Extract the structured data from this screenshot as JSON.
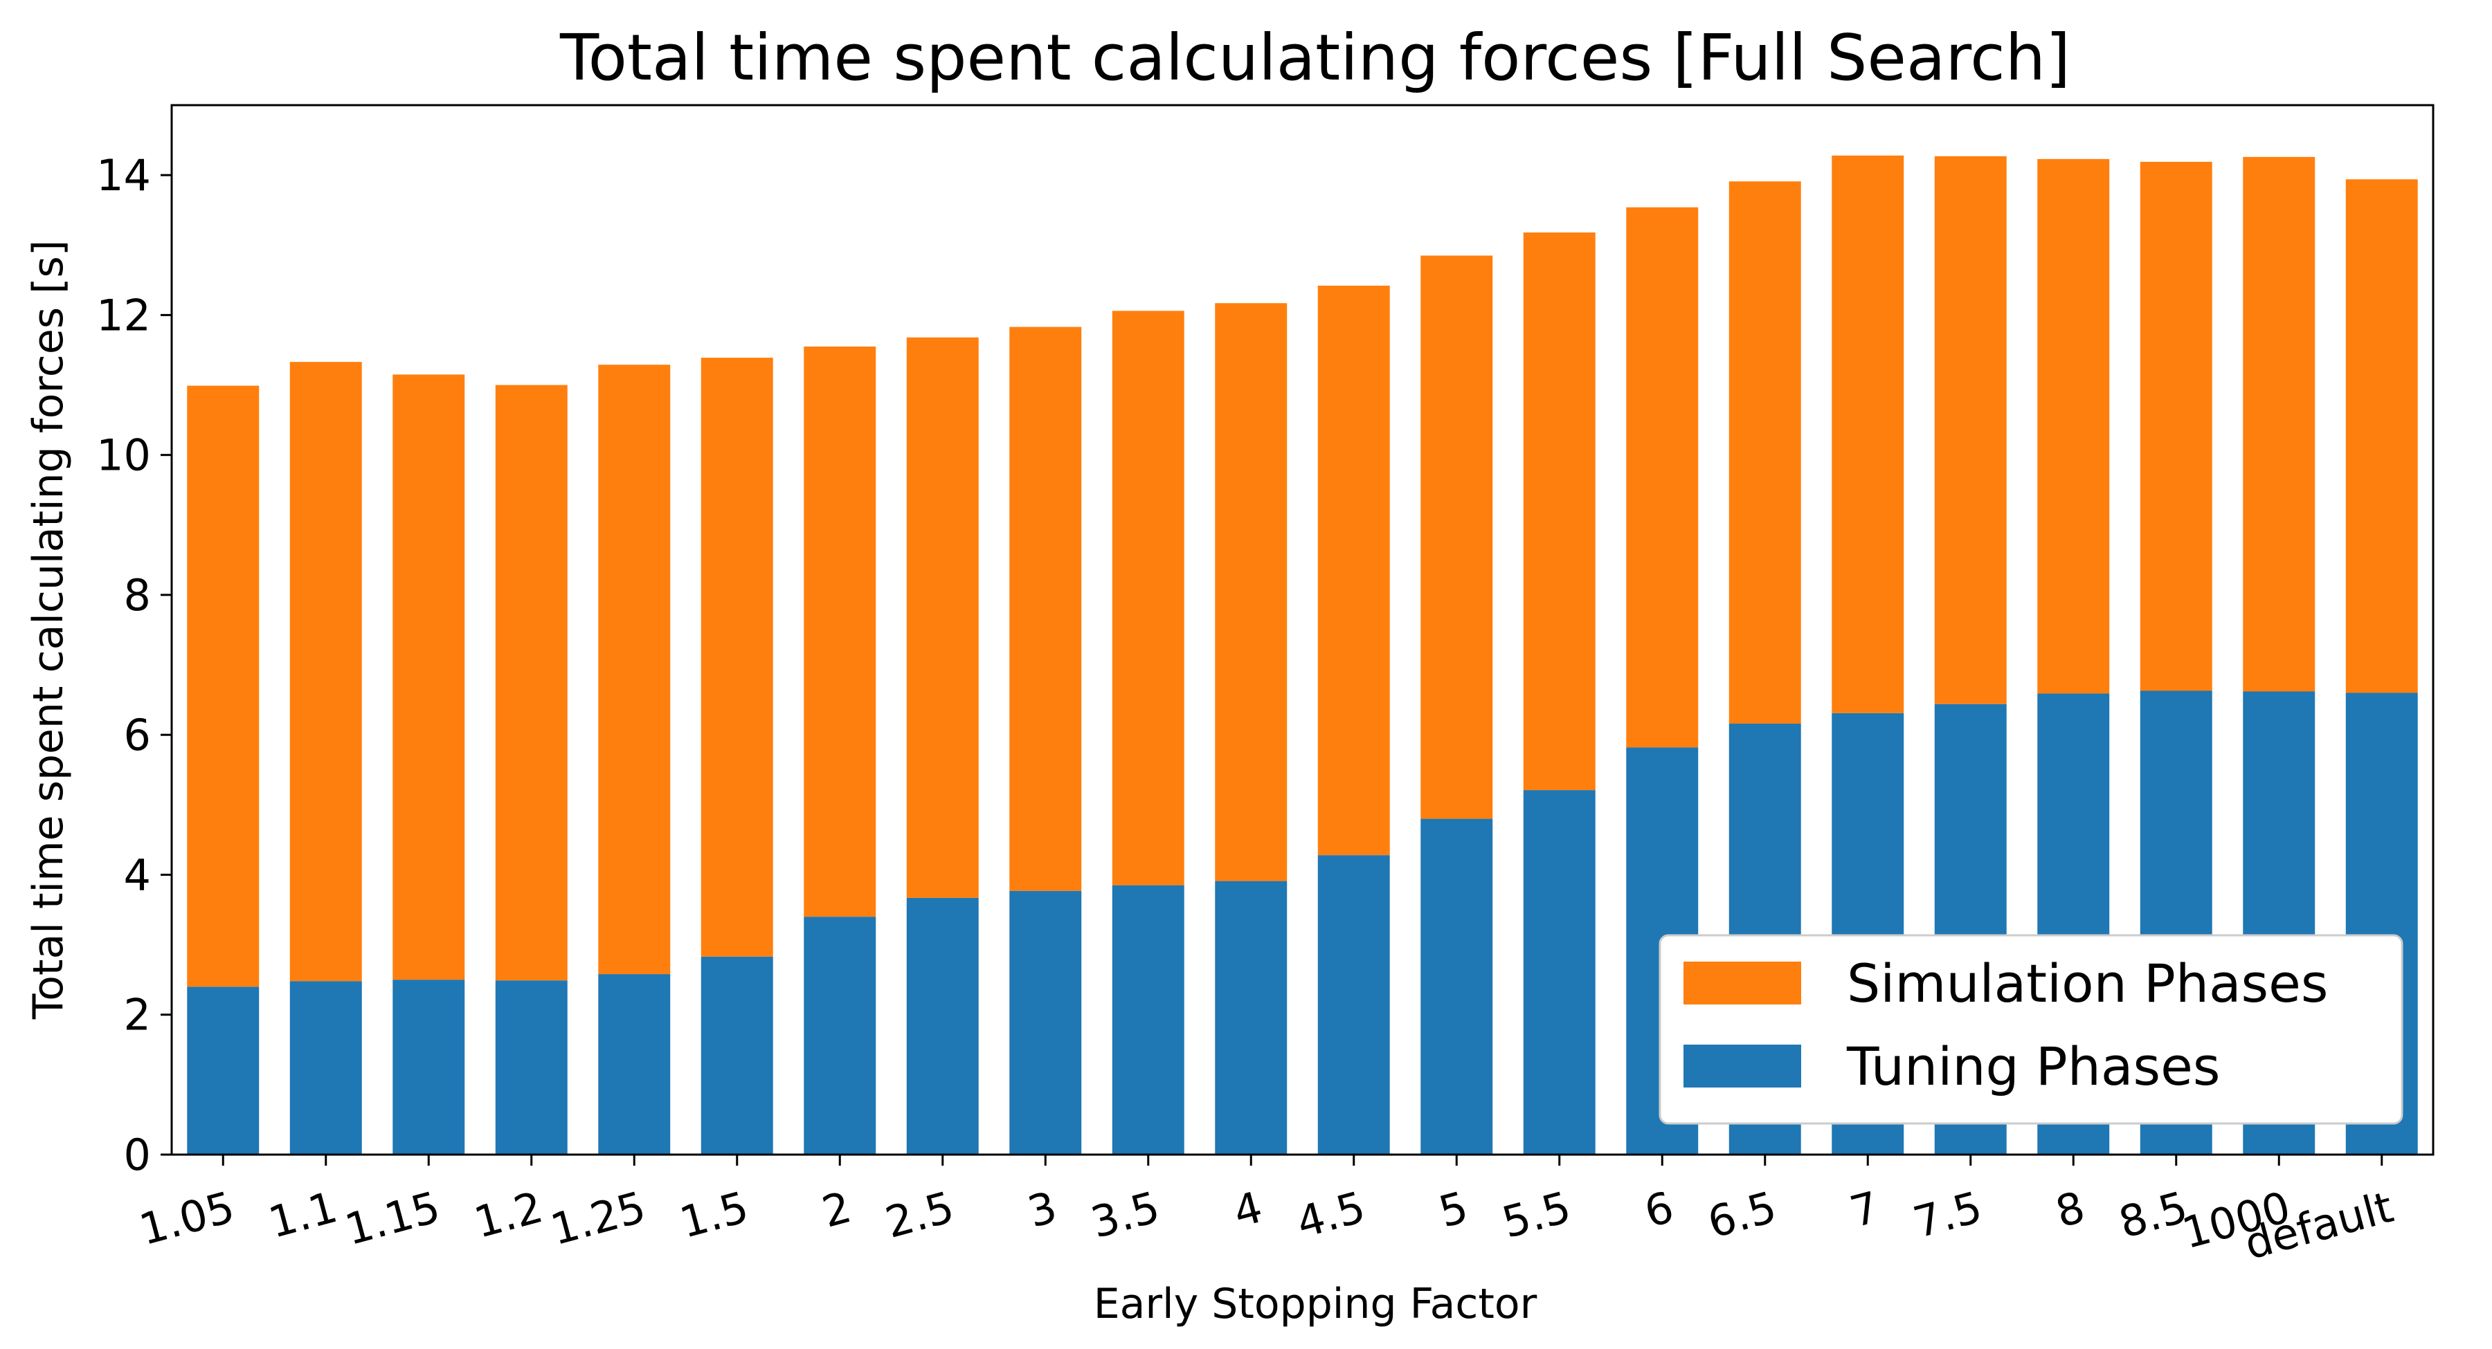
{
  "chart_data": {
    "type": "bar",
    "stacked": true,
    "title": "Total time spent calculating forces [Full Search]",
    "xlabel": "Early Stopping Factor",
    "ylabel": "Total time spent calculating forces [s]",
    "ylim": [
      0,
      15
    ],
    "yticks": [
      0,
      2,
      4,
      6,
      8,
      10,
      12,
      14
    ],
    "grid": false,
    "legend_position": "lower-right",
    "categories": [
      "1.05",
      "1.1",
      "1.15",
      "1.2",
      "1.25",
      "1.5",
      "2",
      "2.5",
      "3",
      "3.5",
      "4",
      "4.5",
      "5",
      "5.5",
      "6",
      "6.5",
      "7",
      "7.5",
      "8",
      "8.5",
      "1000",
      "default"
    ],
    "series": [
      {
        "name": "Tuning Phases",
        "color": "#1f77b4",
        "values": [
          2.4,
          2.48,
          2.5,
          2.49,
          2.58,
          2.83,
          3.4,
          3.67,
          3.77,
          3.85,
          3.91,
          4.28,
          4.8,
          5.21,
          5.82,
          6.16,
          6.31,
          6.44,
          6.59,
          6.63,
          6.62,
          6.6
        ]
      },
      {
        "name": "Simulation Phases",
        "color": "#ff7f0e",
        "values": [
          8.59,
          8.85,
          8.65,
          8.51,
          8.71,
          8.56,
          8.15,
          8.01,
          8.06,
          8.21,
          8.26,
          8.14,
          8.05,
          7.97,
          7.72,
          7.75,
          7.97,
          7.83,
          7.64,
          7.56,
          7.64,
          7.34
        ]
      }
    ],
    "legend": [
      "Simulation Phases",
      "Tuning Phases"
    ]
  }
}
